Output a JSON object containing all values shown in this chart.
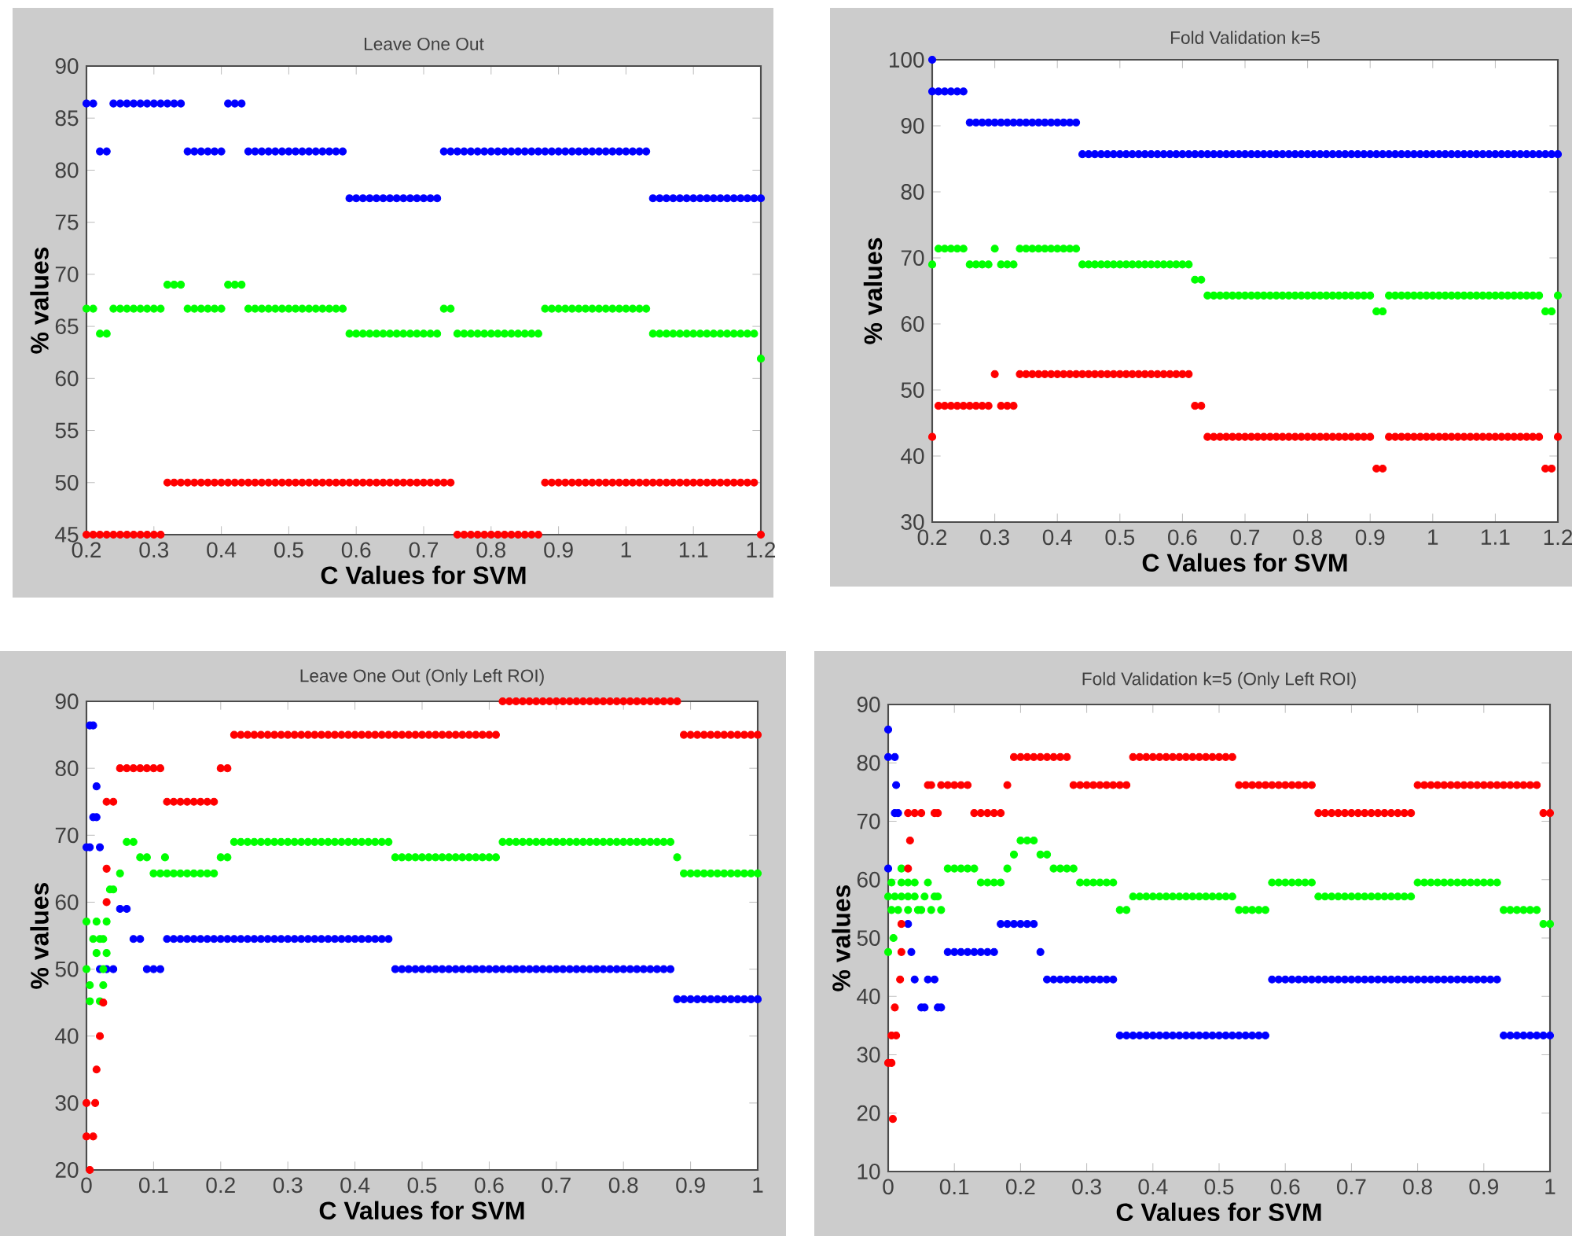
{
  "chart_data": [
    {
      "type": "scatter",
      "title": "Leave One Out",
      "xlabel": "C Values for SVM",
      "ylabel": "% values",
      "marker": "circle",
      "xlim": [
        0.2,
        1.2
      ],
      "ylim": [
        45,
        90
      ],
      "xticks": [
        0.2,
        0.3,
        0.4,
        0.5,
        0.6,
        0.7,
        0.8,
        0.9,
        1,
        1.1,
        1.2
      ],
      "yticks": [
        45,
        50,
        55,
        60,
        65,
        70,
        75,
        80,
        85,
        90
      ],
      "x": [
        0.2,
        0.21,
        0.22,
        0.23,
        0.24,
        0.25,
        0.26,
        0.27,
        0.28,
        0.29,
        0.3,
        0.31,
        0.32,
        0.33,
        0.34,
        0.35,
        0.36,
        0.37,
        0.38,
        0.39,
        0.4,
        0.41,
        0.42,
        0.43,
        0.44,
        0.45,
        0.46,
        0.47,
        0.48,
        0.49,
        0.5,
        0.51,
        0.52,
        0.53,
        0.54,
        0.55,
        0.56,
        0.57,
        0.58,
        0.59,
        0.6,
        0.61,
        0.62,
        0.63,
        0.64,
        0.65,
        0.66,
        0.67,
        0.68,
        0.69,
        0.7,
        0.71,
        0.72,
        0.73,
        0.74,
        0.75,
        0.76,
        0.77,
        0.78,
        0.79,
        0.8,
        0.81,
        0.82,
        0.83,
        0.84,
        0.85,
        0.86,
        0.87,
        0.88,
        0.89,
        0.9,
        0.91,
        0.92,
        0.93,
        0.94,
        0.95,
        0.96,
        0.97,
        0.98,
        0.99,
        1.0,
        1.01,
        1.02,
        1.03,
        1.04,
        1.05,
        1.06,
        1.07,
        1.08,
        1.09,
        1.1,
        1.11,
        1.12,
        1.13,
        1.14,
        1.15,
        1.16,
        1.17,
        1.18,
        1.19,
        1.2
      ],
      "series": [
        {
          "color": "#0000ff",
          "values": [
            86.4,
            86.4,
            81.8,
            81.8,
            86.4,
            86.4,
            86.4,
            86.4,
            86.4,
            86.4,
            86.4,
            86.4,
            86.4,
            86.4,
            86.4,
            81.8,
            81.8,
            81.8,
            81.8,
            81.8,
            81.8,
            86.4,
            86.4,
            86.4,
            81.8,
            81.8,
            81.8,
            81.8,
            81.8,
            81.8,
            81.8,
            81.8,
            81.8,
            81.8,
            81.8,
            81.8,
            81.8,
            81.8,
            81.8,
            77.3,
            77.3,
            77.3,
            77.3,
            77.3,
            77.3,
            77.3,
            77.3,
            77.3,
            77.3,
            77.3,
            77.3,
            77.3,
            77.3,
            81.8,
            81.8,
            81.8,
            81.8,
            81.8,
            81.8,
            81.8,
            81.8,
            81.8,
            81.8,
            81.8,
            81.8,
            81.8,
            81.8,
            81.8,
            81.8,
            81.8,
            81.8,
            81.8,
            81.8,
            81.8,
            81.8,
            81.8,
            81.8,
            81.8,
            81.8,
            81.8,
            81.8,
            81.8,
            81.8,
            81.8,
            77.3,
            77.3,
            77.3,
            77.3,
            77.3,
            77.3,
            77.3,
            77.3,
            77.3,
            77.3,
            77.3,
            77.3,
            77.3,
            77.3,
            77.3,
            77.3,
            77.3
          ]
        },
        {
          "color": "#00ff00",
          "values": [
            66.7,
            66.7,
            64.3,
            64.3,
            66.7,
            66.7,
            66.7,
            66.7,
            66.7,
            66.7,
            66.7,
            66.7,
            69,
            69,
            69,
            66.7,
            66.7,
            66.7,
            66.7,
            66.7,
            66.7,
            69,
            69,
            69,
            66.7,
            66.7,
            66.7,
            66.7,
            66.7,
            66.7,
            66.7,
            66.7,
            66.7,
            66.7,
            66.7,
            66.7,
            66.7,
            66.7,
            66.7,
            64.3,
            64.3,
            64.3,
            64.3,
            64.3,
            64.3,
            64.3,
            64.3,
            64.3,
            64.3,
            64.3,
            64.3,
            64.3,
            64.3,
            66.7,
            66.7,
            64.3,
            64.3,
            64.3,
            64.3,
            64.3,
            64.3,
            64.3,
            64.3,
            64.3,
            64.3,
            64.3,
            64.3,
            64.3,
            66.7,
            66.7,
            66.7,
            66.7,
            66.7,
            66.7,
            66.7,
            66.7,
            66.7,
            66.7,
            66.7,
            66.7,
            66.7,
            66.7,
            66.7,
            66.7,
            64.3,
            64.3,
            64.3,
            64.3,
            64.3,
            64.3,
            64.3,
            64.3,
            64.3,
            64.3,
            64.3,
            64.3,
            64.3,
            64.3,
            64.3,
            64.3,
            61.9
          ]
        },
        {
          "color": "#ff0000",
          "values": [
            45,
            45,
            45,
            45,
            45,
            45,
            45,
            45,
            45,
            45,
            45,
            45,
            50,
            50,
            50,
            50,
            50,
            50,
            50,
            50,
            50,
            50,
            50,
            50,
            50,
            50,
            50,
            50,
            50,
            50,
            50,
            50,
            50,
            50,
            50,
            50,
            50,
            50,
            50,
            50,
            50,
            50,
            50,
            50,
            50,
            50,
            50,
            50,
            50,
            50,
            50,
            50,
            50,
            50,
            50,
            45,
            45,
            45,
            45,
            45,
            45,
            45,
            45,
            45,
            45,
            45,
            45,
            45,
            50,
            50,
            50,
            50,
            50,
            50,
            50,
            50,
            50,
            50,
            50,
            50,
            50,
            50,
            50,
            50,
            50,
            50,
            50,
            50,
            50,
            50,
            50,
            50,
            50,
            50,
            50,
            50,
            50,
            50,
            50,
            50,
            45
          ]
        }
      ]
    },
    {
      "type": "scatter",
      "title": "Fold Validation k=5",
      "xlabel": "C Values for SVM",
      "ylabel": "% values",
      "marker": "circle",
      "xlim": [
        0.2,
        1.2
      ],
      "ylim": [
        30,
        100
      ],
      "xticks": [
        0.2,
        0.3,
        0.4,
        0.5,
        0.6,
        0.7,
        0.8,
        0.9,
        1,
        1.1,
        1.2
      ],
      "yticks": [
        30,
        40,
        50,
        60,
        70,
        80,
        90,
        100
      ],
      "x": [
        0.2,
        0.21,
        0.22,
        0.23,
        0.24,
        0.25,
        0.26,
        0.27,
        0.28,
        0.29,
        0.3,
        0.31,
        0.32,
        0.33,
        0.34,
        0.35,
        0.36,
        0.37,
        0.38,
        0.39,
        0.4,
        0.41,
        0.42,
        0.43,
        0.44,
        0.45,
        0.46,
        0.47,
        0.48,
        0.49,
        0.5,
        0.51,
        0.52,
        0.53,
        0.54,
        0.55,
        0.56,
        0.57,
        0.58,
        0.59,
        0.6,
        0.61,
        0.62,
        0.63,
        0.64,
        0.65,
        0.66,
        0.67,
        0.68,
        0.69,
        0.7,
        0.71,
        0.72,
        0.73,
        0.74,
        0.75,
        0.76,
        0.77,
        0.78,
        0.79,
        0.8,
        0.81,
        0.82,
        0.83,
        0.84,
        0.85,
        0.86,
        0.87,
        0.88,
        0.89,
        0.9,
        0.91,
        0.92,
        0.93,
        0.94,
        0.95,
        0.96,
        0.97,
        0.98,
        0.99,
        1.0,
        1.01,
        1.02,
        1.03,
        1.04,
        1.05,
        1.06,
        1.07,
        1.08,
        1.09,
        1.1,
        1.11,
        1.12,
        1.13,
        1.14,
        1.15,
        1.16,
        1.17,
        1.18,
        1.19,
        1.2
      ],
      "series": [
        {
          "color": "#0000ff",
          "values": [
            95.2,
            95.2,
            95.2,
            95.2,
            95.2,
            95.2,
            90.5,
            90.5,
            90.5,
            90.5,
            90.5,
            90.5,
            90.5,
            90.5,
            90.5,
            90.5,
            90.5,
            90.5,
            90.5,
            90.5,
            90.5,
            90.5,
            90.5,
            90.5,
            85.7,
            85.7,
            85.7,
            85.7,
            85.7,
            85.7,
            85.7,
            85.7,
            85.7,
            85.7,
            85.7,
            85.7,
            85.7,
            85.7,
            85.7,
            85.7,
            85.7,
            85.7,
            85.7,
            85.7,
            85.7,
            85.7,
            85.7,
            85.7,
            85.7,
            85.7,
            85.7,
            85.7,
            85.7,
            85.7,
            85.7,
            85.7,
            85.7,
            85.7,
            85.7,
            85.7,
            85.7,
            85.7,
            85.7,
            85.7,
            85.7,
            85.7,
            85.7,
            85.7,
            85.7,
            85.7,
            85.7,
            85.7,
            85.7,
            85.7,
            85.7,
            85.7,
            85.7,
            85.7,
            85.7,
            85.7,
            85.7,
            85.7,
            85.7,
            85.7,
            85.7,
            85.7,
            85.7,
            85.7,
            85.7,
            85.7,
            85.7,
            85.7,
            85.7,
            85.7,
            85.7,
            85.7,
            85.7,
            85.7,
            85.7,
            85.7,
            85.7
          ]
        },
        {
          "color": "#0000ff",
          "x": [
            0.2
          ],
          "values": [
            100
          ]
        },
        {
          "color": "#00ff00",
          "values": [
            69,
            71.4,
            71.4,
            71.4,
            71.4,
            71.4,
            69,
            69,
            69,
            69,
            71.4,
            69,
            69,
            69,
            71.4,
            71.4,
            71.4,
            71.4,
            71.4,
            71.4,
            71.4,
            71.4,
            71.4,
            71.4,
            69,
            69,
            69,
            69,
            69,
            69,
            69,
            69,
            69,
            69,
            69,
            69,
            69,
            69,
            69,
            69,
            69,
            69,
            66.7,
            66.7,
            64.3,
            64.3,
            64.3,
            64.3,
            64.3,
            64.3,
            64.3,
            64.3,
            64.3,
            64.3,
            64.3,
            64.3,
            64.3,
            64.3,
            64.3,
            64.3,
            64.3,
            64.3,
            64.3,
            64.3,
            64.3,
            64.3,
            64.3,
            64.3,
            64.3,
            64.3,
            64.3,
            61.9,
            61.9,
            64.3,
            64.3,
            64.3,
            64.3,
            64.3,
            64.3,
            64.3,
            64.3,
            64.3,
            64.3,
            64.3,
            64.3,
            64.3,
            64.3,
            64.3,
            64.3,
            64.3,
            64.3,
            64.3,
            64.3,
            64.3,
            64.3,
            64.3,
            64.3,
            64.3,
            61.9,
            61.9,
            64.3
          ]
        },
        {
          "color": "#ff0000",
          "values": [
            42.9,
            47.6,
            47.6,
            47.6,
            47.6,
            47.6,
            47.6,
            47.6,
            47.6,
            47.6,
            52.4,
            47.6,
            47.6,
            47.6,
            52.4,
            52.4,
            52.4,
            52.4,
            52.4,
            52.4,
            52.4,
            52.4,
            52.4,
            52.4,
            52.4,
            52.4,
            52.4,
            52.4,
            52.4,
            52.4,
            52.4,
            52.4,
            52.4,
            52.4,
            52.4,
            52.4,
            52.4,
            52.4,
            52.4,
            52.4,
            52.4,
            52.4,
            47.6,
            47.6,
            42.9,
            42.9,
            42.9,
            42.9,
            42.9,
            42.9,
            42.9,
            42.9,
            42.9,
            42.9,
            42.9,
            42.9,
            42.9,
            42.9,
            42.9,
            42.9,
            42.9,
            42.9,
            42.9,
            42.9,
            42.9,
            42.9,
            42.9,
            42.9,
            42.9,
            42.9,
            42.9,
            38.1,
            38.1,
            42.9,
            42.9,
            42.9,
            42.9,
            42.9,
            42.9,
            42.9,
            42.9,
            42.9,
            42.9,
            42.9,
            42.9,
            42.9,
            42.9,
            42.9,
            42.9,
            42.9,
            42.9,
            42.9,
            42.9,
            42.9,
            42.9,
            42.9,
            42.9,
            42.9,
            38.1,
            38.1,
            42.9
          ]
        }
      ]
    },
    {
      "type": "scatter",
      "title": "Leave One Out (Only Left ROI)",
      "xlabel": "C Values for SVM",
      "ylabel": "% values",
      "marker": "circle",
      "xlim": [
        0,
        1
      ],
      "ylim": [
        20,
        90
      ],
      "xticks": [
        0,
        0.1,
        0.2,
        0.3,
        0.4,
        0.5,
        0.6,
        0.7,
        0.8,
        0.9,
        1
      ],
      "yticks": [
        20,
        30,
        40,
        50,
        60,
        70,
        80,
        90
      ],
      "x": [
        0.04,
        0.05,
        0.06,
        0.07,
        0.08,
        0.09,
        0.1,
        0.11,
        0.12,
        0.13,
        0.14,
        0.15,
        0.16,
        0.17,
        0.18,
        0.19,
        0.2,
        0.21,
        0.22,
        0.23,
        0.24,
        0.25,
        0.26,
        0.27,
        0.28,
        0.29,
        0.3,
        0.31,
        0.32,
        0.33,
        0.34,
        0.35,
        0.36,
        0.37,
        0.38,
        0.39,
        0.4,
        0.41,
        0.42,
        0.43,
        0.44,
        0.45,
        0.46,
        0.47,
        0.48,
        0.49,
        0.5,
        0.51,
        0.52,
        0.53,
        0.54,
        0.55,
        0.56,
        0.57,
        0.58,
        0.59,
        0.6,
        0.61,
        0.62,
        0.63,
        0.64,
        0.65,
        0.66,
        0.67,
        0.68,
        0.69,
        0.7,
        0.71,
        0.72,
        0.73,
        0.74,
        0.75,
        0.76,
        0.77,
        0.78,
        0.79,
        0.8,
        0.81,
        0.82,
        0.83,
        0.84,
        0.85,
        0.86,
        0.87,
        0.88,
        0.89,
        0.9,
        0.91,
        0.92,
        0.93,
        0.94,
        0.95,
        0.96,
        0.97,
        0.98,
        0.99,
        1.0
      ],
      "series": [
        {
          "color": "#0000ff",
          "values": [
            50,
            59,
            59,
            54.5,
            54.5,
            50,
            50,
            50,
            54.5,
            54.5,
            54.5,
            54.5,
            54.5,
            54.5,
            54.5,
            54.5,
            54.5,
            54.5,
            54.5,
            54.5,
            54.5,
            54.5,
            54.5,
            54.5,
            54.5,
            54.5,
            54.5,
            54.5,
            54.5,
            54.5,
            54.5,
            54.5,
            54.5,
            54.5,
            54.5,
            54.5,
            54.5,
            54.5,
            54.5,
            54.5,
            54.5,
            54.5,
            50,
            50,
            50,
            50,
            50,
            50,
            50,
            50,
            50,
            50,
            50,
            50,
            50,
            50,
            50,
            50,
            50,
            50,
            50,
            50,
            50,
            50,
            50,
            50,
            50,
            50,
            50,
            50,
            50,
            50,
            50,
            50,
            50,
            50,
            50,
            50,
            50,
            50,
            50,
            50,
            50,
            50,
            45.5,
            45.5,
            45.5,
            45.5,
            45.5,
            45.5,
            45.5,
            45.5,
            45.5,
            45.5,
            45.5,
            45.5,
            45.5
          ]
        },
        {
          "color": "#0000ff",
          "x": [
            0.005,
            0.01,
            0.015,
            0.01,
            0.015,
            0.0,
            0.005,
            0.02,
            0.02,
            0.03
          ],
          "values": [
            86.4,
            86.4,
            77.3,
            72.7,
            72.7,
            68.2,
            68.2,
            68.2,
            50,
            50
          ]
        },
        {
          "color": "#00ff00",
          "values": [
            61.9,
            64.3,
            69,
            69,
            66.7,
            66.7,
            64.3,
            64.3,
            64.3,
            64.3,
            64.3,
            64.3,
            64.3,
            64.3,
            64.3,
            64.3,
            66.7,
            66.7,
            69,
            69,
            69,
            69,
            69,
            69,
            69,
            69,
            69,
            69,
            69,
            69,
            69,
            69,
            69,
            69,
            69,
            69,
            69,
            69,
            69,
            69,
            69,
            69,
            66.7,
            66.7,
            66.7,
            66.7,
            66.7,
            66.7,
            66.7,
            66.7,
            66.7,
            66.7,
            66.7,
            66.7,
            66.7,
            66.7,
            66.7,
            66.7,
            69,
            69,
            69,
            69,
            69,
            69,
            69,
            69,
            69,
            69,
            69,
            69,
            69,
            69,
            69,
            69,
            69,
            69,
            69,
            69,
            69,
            69,
            69,
            69,
            69,
            69,
            66.7,
            64.3,
            64.3,
            64.3,
            64.3,
            64.3,
            64.3,
            64.3,
            64.3,
            64.3,
            64.3,
            64.3,
            64.3
          ]
        },
        {
          "color": "#00ff00",
          "x": [
            0.0,
            0.015,
            0.03,
            0.01,
            0.02,
            0.025,
            0.015,
            0.03,
            0.0,
            0.025,
            0.005,
            0.025,
            0.005,
            0.02,
            0.035,
            0.117
          ],
          "values": [
            57.1,
            57.1,
            57.1,
            54.5,
            54.5,
            54.5,
            52.4,
            52.4,
            50,
            50,
            47.6,
            47.6,
            45.2,
            45.2,
            61.9,
            66.7
          ]
        },
        {
          "color": "#ff0000",
          "values": [
            75,
            80,
            80,
            80,
            80,
            80,
            80,
            80,
            75,
            75,
            75,
            75,
            75,
            75,
            75,
            75,
            80,
            80,
            85,
            85,
            85,
            85,
            85,
            85,
            85,
            85,
            85,
            85,
            85,
            85,
            85,
            85,
            85,
            85,
            85,
            85,
            85,
            85,
            85,
            85,
            85,
            85,
            85,
            85,
            85,
            85,
            85,
            85,
            85,
            85,
            85,
            85,
            85,
            85,
            85,
            85,
            85,
            85,
            90,
            90,
            90,
            90,
            90,
            90,
            90,
            90,
            90,
            90,
            90,
            90,
            90,
            90,
            90,
            90,
            90,
            90,
            90,
            90,
            90,
            90,
            90,
            90,
            90,
            90,
            90,
            85,
            85,
            85,
            85,
            85,
            85,
            85,
            85,
            85,
            85,
            85,
            85
          ]
        },
        {
          "color": "#ff0000",
          "x": [
            0.005,
            0.0,
            0.01,
            0.0,
            0.013,
            0.015,
            0.02,
            0.025,
            0.03,
            0.03,
            0.03
          ],
          "values": [
            20,
            25,
            25,
            30,
            30,
            35,
            40,
            45,
            60,
            65,
            75
          ]
        }
      ]
    },
    {
      "type": "scatter",
      "title": "Fold Validation k=5    (Only Left ROI)",
      "xlabel": "C Values for SVM",
      "ylabel": "% values",
      "marker": "circle",
      "xlim": [
        0,
        1
      ],
      "ylim": [
        10,
        90
      ],
      "xticks": [
        0,
        0.1,
        0.2,
        0.3,
        0.4,
        0.5,
        0.6,
        0.7,
        0.8,
        0.9,
        1
      ],
      "yticks": [
        10,
        20,
        30,
        40,
        50,
        60,
        70,
        80,
        90
      ],
      "x": [
        0.04,
        0.05,
        0.06,
        0.07,
        0.08,
        0.09,
        0.1,
        0.11,
        0.12,
        0.13,
        0.14,
        0.15,
        0.16,
        0.17,
        0.18,
        0.19,
        0.2,
        0.21,
        0.22,
        0.23,
        0.24,
        0.25,
        0.26,
        0.27,
        0.28,
        0.29,
        0.3,
        0.31,
        0.32,
        0.33,
        0.34,
        0.35,
        0.36,
        0.37,
        0.38,
        0.39,
        0.4,
        0.41,
        0.42,
        0.43,
        0.44,
        0.45,
        0.46,
        0.47,
        0.48,
        0.49,
        0.5,
        0.51,
        0.52,
        0.53,
        0.54,
        0.55,
        0.56,
        0.57,
        0.58,
        0.59,
        0.6,
        0.61,
        0.62,
        0.63,
        0.64,
        0.65,
        0.66,
        0.67,
        0.68,
        0.69,
        0.7,
        0.71,
        0.72,
        0.73,
        0.74,
        0.75,
        0.76,
        0.77,
        0.78,
        0.79,
        0.8,
        0.81,
        0.82,
        0.83,
        0.84,
        0.85,
        0.86,
        0.87,
        0.88,
        0.89,
        0.9,
        0.91,
        0.92,
        0.93,
        0.94,
        0.95,
        0.96,
        0.97,
        0.98,
        0.99,
        1.0
      ],
      "series": [
        {
          "color": "#0000ff",
          "values": [
            42.9,
            38.1,
            42.9,
            42.9,
            38.1,
            47.6,
            47.6,
            47.6,
            47.6,
            47.6,
            47.6,
            47.6,
            47.6,
            52.4,
            52.4,
            52.4,
            52.4,
            52.4,
            52.4,
            47.6,
            42.9,
            42.9,
            42.9,
            42.9,
            42.9,
            42.9,
            42.9,
            42.9,
            42.9,
            42.9,
            42.9,
            33.3,
            33.3,
            33.3,
            33.3,
            33.3,
            33.3,
            33.3,
            33.3,
            33.3,
            33.3,
            33.3,
            33.3,
            33.3,
            33.3,
            33.3,
            33.3,
            33.3,
            33.3,
            33.3,
            33.3,
            33.3,
            33.3,
            33.3,
            42.9,
            42.9,
            42.9,
            42.9,
            42.9,
            42.9,
            42.9,
            42.9,
            42.9,
            42.9,
            42.9,
            42.9,
            42.9,
            42.9,
            42.9,
            42.9,
            42.9,
            42.9,
            42.9,
            42.9,
            42.9,
            42.9,
            42.9,
            42.9,
            42.9,
            42.9,
            42.9,
            42.9,
            42.9,
            42.9,
            42.9,
            42.9,
            42.9,
            42.9,
            42.9,
            33.3,
            33.3,
            33.3,
            33.3,
            33.3,
            33.3,
            33.3,
            33.3
          ]
        },
        {
          "color": "#0000ff",
          "x": [
            0.0,
            0.0,
            0.01,
            0.012,
            0.01,
            0.015,
            0.0,
            0.03,
            0.035,
            0.055,
            0.075
          ],
          "values": [
            85.7,
            81,
            81,
            76.2,
            71.4,
            71.4,
            61.9,
            52.4,
            47.6,
            38.1,
            38.1
          ]
        },
        {
          "color": "#00ff00",
          "values": [
            57.1,
            54.8,
            59.5,
            57.1,
            54.8,
            61.9,
            61.9,
            61.9,
            61.9,
            61.9,
            59.5,
            59.5,
            59.5,
            59.5,
            61.9,
            64.3,
            66.7,
            66.7,
            66.7,
            64.3,
            64.3,
            61.9,
            61.9,
            61.9,
            61.9,
            59.5,
            59.5,
            59.5,
            59.5,
            59.5,
            59.5,
            54.8,
            54.8,
            57.1,
            57.1,
            57.1,
            57.1,
            57.1,
            57.1,
            57.1,
            57.1,
            57.1,
            57.1,
            57.1,
            57.1,
            57.1,
            57.1,
            57.1,
            57.1,
            54.8,
            54.8,
            54.8,
            54.8,
            54.8,
            59.5,
            59.5,
            59.5,
            59.5,
            59.5,
            59.5,
            59.5,
            57.1,
            57.1,
            57.1,
            57.1,
            57.1,
            57.1,
            57.1,
            57.1,
            57.1,
            57.1,
            57.1,
            57.1,
            57.1,
            57.1,
            57.1,
            59.5,
            59.5,
            59.5,
            59.5,
            59.5,
            59.5,
            59.5,
            59.5,
            59.5,
            59.5,
            59.5,
            59.5,
            59.5,
            54.8,
            54.8,
            54.8,
            54.8,
            54.8,
            54.8,
            52.4,
            52.4
          ]
        },
        {
          "color": "#00ff00",
          "x": [
            0.0,
            0.0,
            0.005,
            0.005,
            0.008,
            0.01,
            0.015,
            0.02,
            0.02,
            0.02,
            0.03,
            0.03,
            0.03,
            0.04,
            0.045,
            0.055,
            0.065,
            0.075
          ],
          "values": [
            47.6,
            57.1,
            59.5,
            54.8,
            50,
            57.1,
            54.8,
            61.9,
            59.5,
            57.1,
            59.5,
            57.1,
            54.8,
            59.5,
            54.8,
            57.1,
            54.8,
            57.1
          ]
        },
        {
          "color": "#ff0000",
          "values": [
            71.4,
            71.4,
            76.2,
            71.4,
            76.2,
            76.2,
            76.2,
            76.2,
            76.2,
            71.4,
            71.4,
            71.4,
            71.4,
            71.4,
            76.2,
            81,
            81,
            81,
            81,
            81,
            81,
            81,
            81,
            81,
            76.2,
            76.2,
            76.2,
            76.2,
            76.2,
            76.2,
            76.2,
            76.2,
            76.2,
            81,
            81,
            81,
            81,
            81,
            81,
            81,
            81,
            81,
            81,
            81,
            81,
            81,
            81,
            81,
            81,
            76.2,
            76.2,
            76.2,
            76.2,
            76.2,
            76.2,
            76.2,
            76.2,
            76.2,
            76.2,
            76.2,
            76.2,
            71.4,
            71.4,
            71.4,
            71.4,
            71.4,
            71.4,
            71.4,
            71.4,
            71.4,
            71.4,
            71.4,
            71.4,
            71.4,
            71.4,
            71.4,
            76.2,
            76.2,
            76.2,
            76.2,
            76.2,
            76.2,
            76.2,
            76.2,
            76.2,
            76.2,
            76.2,
            76.2,
            76.2,
            76.2,
            76.2,
            76.2,
            76.2,
            76.2,
            76.2,
            71.4,
            71.4
          ]
        },
        {
          "color": "#ff0000",
          "x": [
            0.007,
            0.0,
            0.005,
            0.005,
            0.012,
            0.01,
            0.018,
            0.02,
            0.02,
            0.03,
            0.033,
            0.03,
            0.065,
            0.075
          ],
          "values": [
            19,
            28.6,
            28.6,
            33.3,
            33.3,
            38.1,
            42.9,
            47.6,
            52.4,
            61.9,
            66.7,
            71.4,
            76.2,
            71.4
          ]
        }
      ]
    }
  ]
}
